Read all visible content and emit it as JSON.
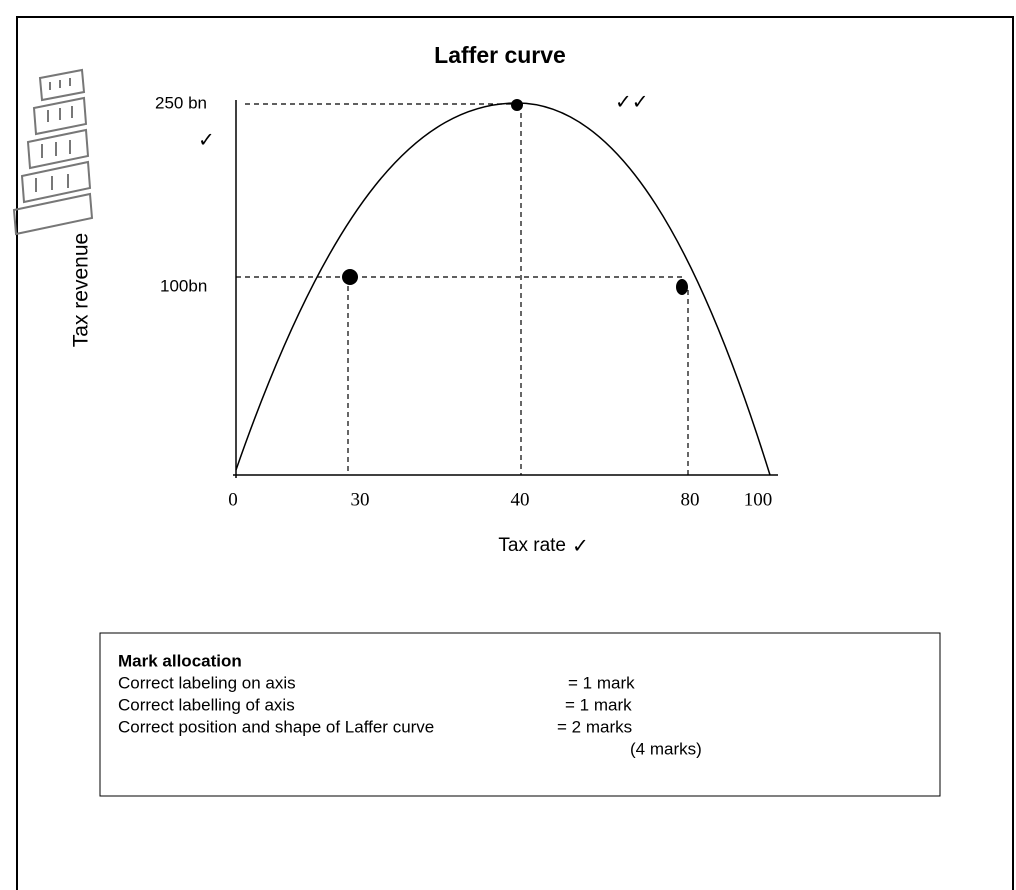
{
  "title": "Laffer curve",
  "diagram": {
    "y_axis_title": "Tax revenue",
    "x_axis_title": "Tax rate",
    "y_labels": [
      "250 bn",
      "100bn"
    ],
    "x_labels": [
      "0",
      "30",
      "40",
      "80",
      "100"
    ],
    "checks": [
      "✓",
      "✓✓",
      "✓"
    ]
  },
  "mark_allocation": {
    "heading": "Mark allocation",
    "rows": [
      [
        "Correct labeling on axis",
        "= 1 mark"
      ],
      [
        "Correct labelling of axis",
        "= 1 mark"
      ],
      [
        "Correct position and shape of Laffer curve",
        "= 2 marks"
      ]
    ],
    "total": "(4 marks)"
  }
}
